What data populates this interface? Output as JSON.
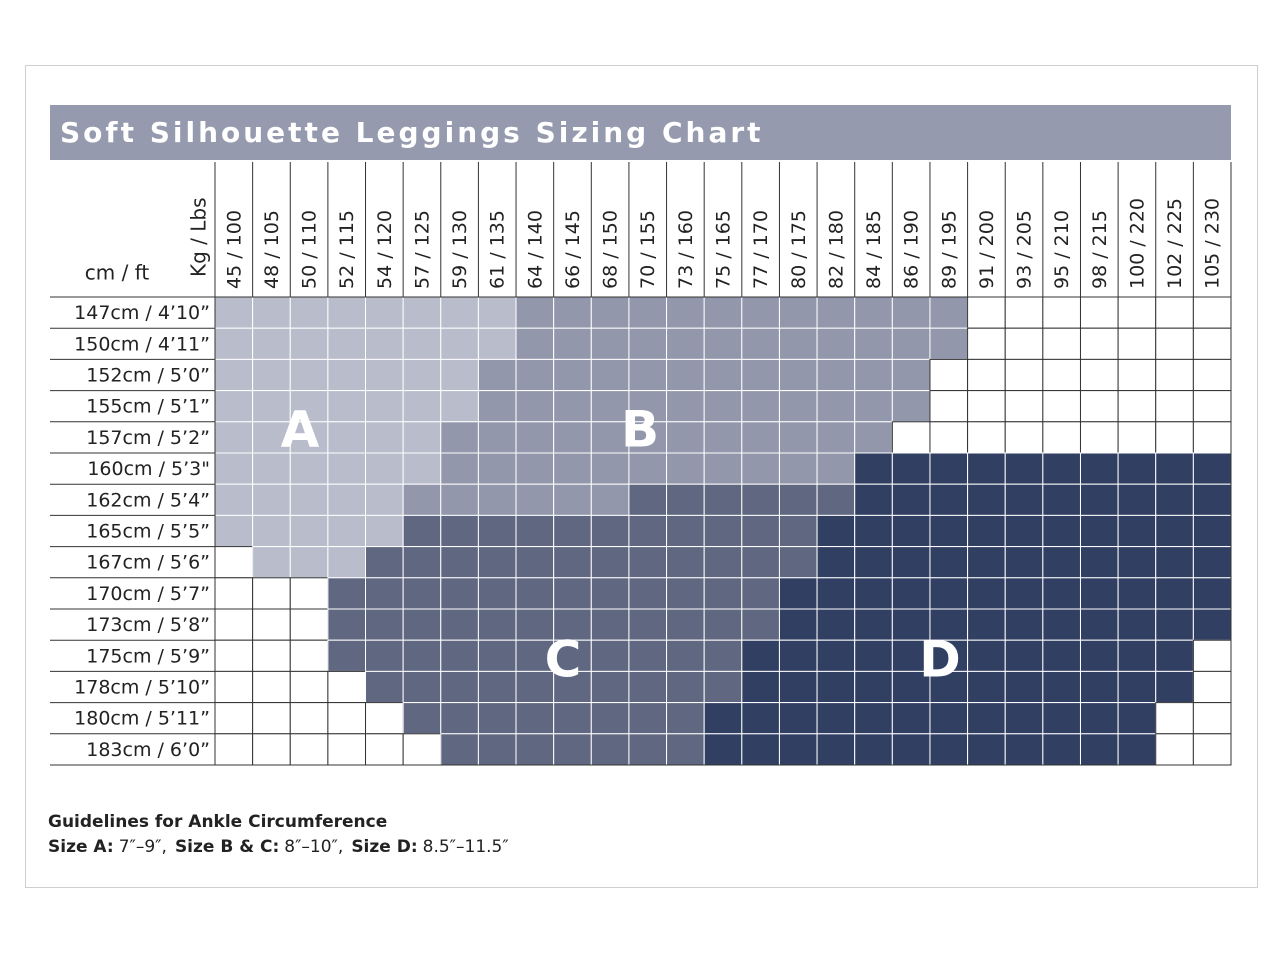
{
  "title": "Soft Silhouette Leggings Sizing Chart",
  "corner": {
    "weight_label": "Kg / Lbs",
    "height_label": "cm / ft"
  },
  "columns": [
    "45 / 100",
    "48 / 105",
    "50 / 110",
    "52 / 115",
    "54 / 120",
    "57 / 125",
    "59 / 130",
    "61 / 135",
    "64 / 140",
    "66 / 145",
    "68 / 150",
    "70 / 155",
    "73 / 160",
    "75 / 165",
    "77 / 170",
    "80 / 175",
    "82 / 180",
    "84 / 185",
    "86 / 190",
    "89 / 195",
    "91 / 200",
    "93 / 205",
    "95 / 210",
    "98 / 215",
    "100 / 220",
    "102 / 225",
    "105 / 230"
  ],
  "rows": [
    "147cm / 4’10”",
    "150cm / 4’11”",
    "152cm / 5’0”",
    "155cm / 5’1”",
    "157cm / 5’2”",
    "160cm / 5’3\"",
    "162cm / 5’4”",
    "165cm / 5’5”",
    "167cm / 5’6”",
    "170cm / 5’7”",
    "173cm / 5’8”",
    "175cm / 5’9”",
    "178cm / 5’10”",
    "180cm / 5’11”",
    "183cm / 6’0”"
  ],
  "zones": [
    {
      "letter": "A"
    },
    {
      "letter": "B"
    },
    {
      "letter": "C"
    },
    {
      "letter": "D"
    }
  ],
  "guidelines": {
    "heading": "Guidelines for Ankle Circumference",
    "items": [
      {
        "label": "Size A:",
        "value": "7″–9″,"
      },
      {
        "label": "Size B & C:",
        "value": "8″–10″,"
      },
      {
        "label": "Size D:",
        "value": "8.5″–11.5″"
      }
    ]
  }
}
